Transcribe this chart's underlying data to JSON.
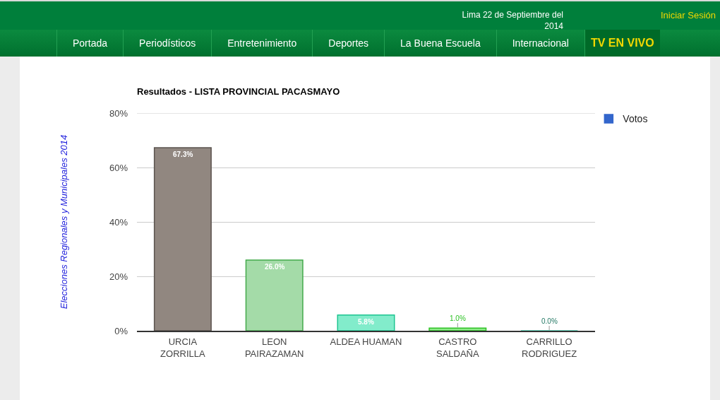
{
  "chart_data": {
    "type": "bar",
    "title": "Resultados - LISTA PROVINCIAL PACASMAYO",
    "ylabel": "Elecciones Regionales y Municipales 2014",
    "categories": [
      "URCIA ZORRILLA",
      "LEON PAIRAZAMAN",
      "ALDEA HUAMAN",
      "CASTRO SALDAÑA",
      "CARRILLO RODRIGUEZ"
    ],
    "series": [
      {
        "name": "Votos",
        "color": "#3366cc",
        "colors": [
          "#918780",
          "#a4dba8",
          "#82eccb",
          "#8fe98a",
          "#38c2a2"
        ],
        "values": [
          67.3,
          26.0,
          5.8,
          1.0,
          0.0
        ],
        "value_labels": [
          "67.3%",
          "26.0%",
          "5.8%",
          "1.0%",
          "0.0%"
        ]
      }
    ],
    "ylim": [
      0,
      80
    ],
    "yticks": [
      {
        "value": 0,
        "label": "0%"
      },
      {
        "value": 20,
        "label": "20%"
      },
      {
        "value": 40,
        "label": "40%"
      },
      {
        "value": 60,
        "label": "60%"
      },
      {
        "value": 80,
        "label": "80%"
      }
    ],
    "grid": "y",
    "legend": "top right",
    "annotations": [
      "Lima 22 de Septiembre del 2014",
      "Iniciar Sesión",
      "Portada",
      "Periodísticos",
      "Entretenimiento",
      "Deportes",
      "La Buena Escuela",
      "Internacional",
      "TV EN VIVO"
    ]
  }
}
